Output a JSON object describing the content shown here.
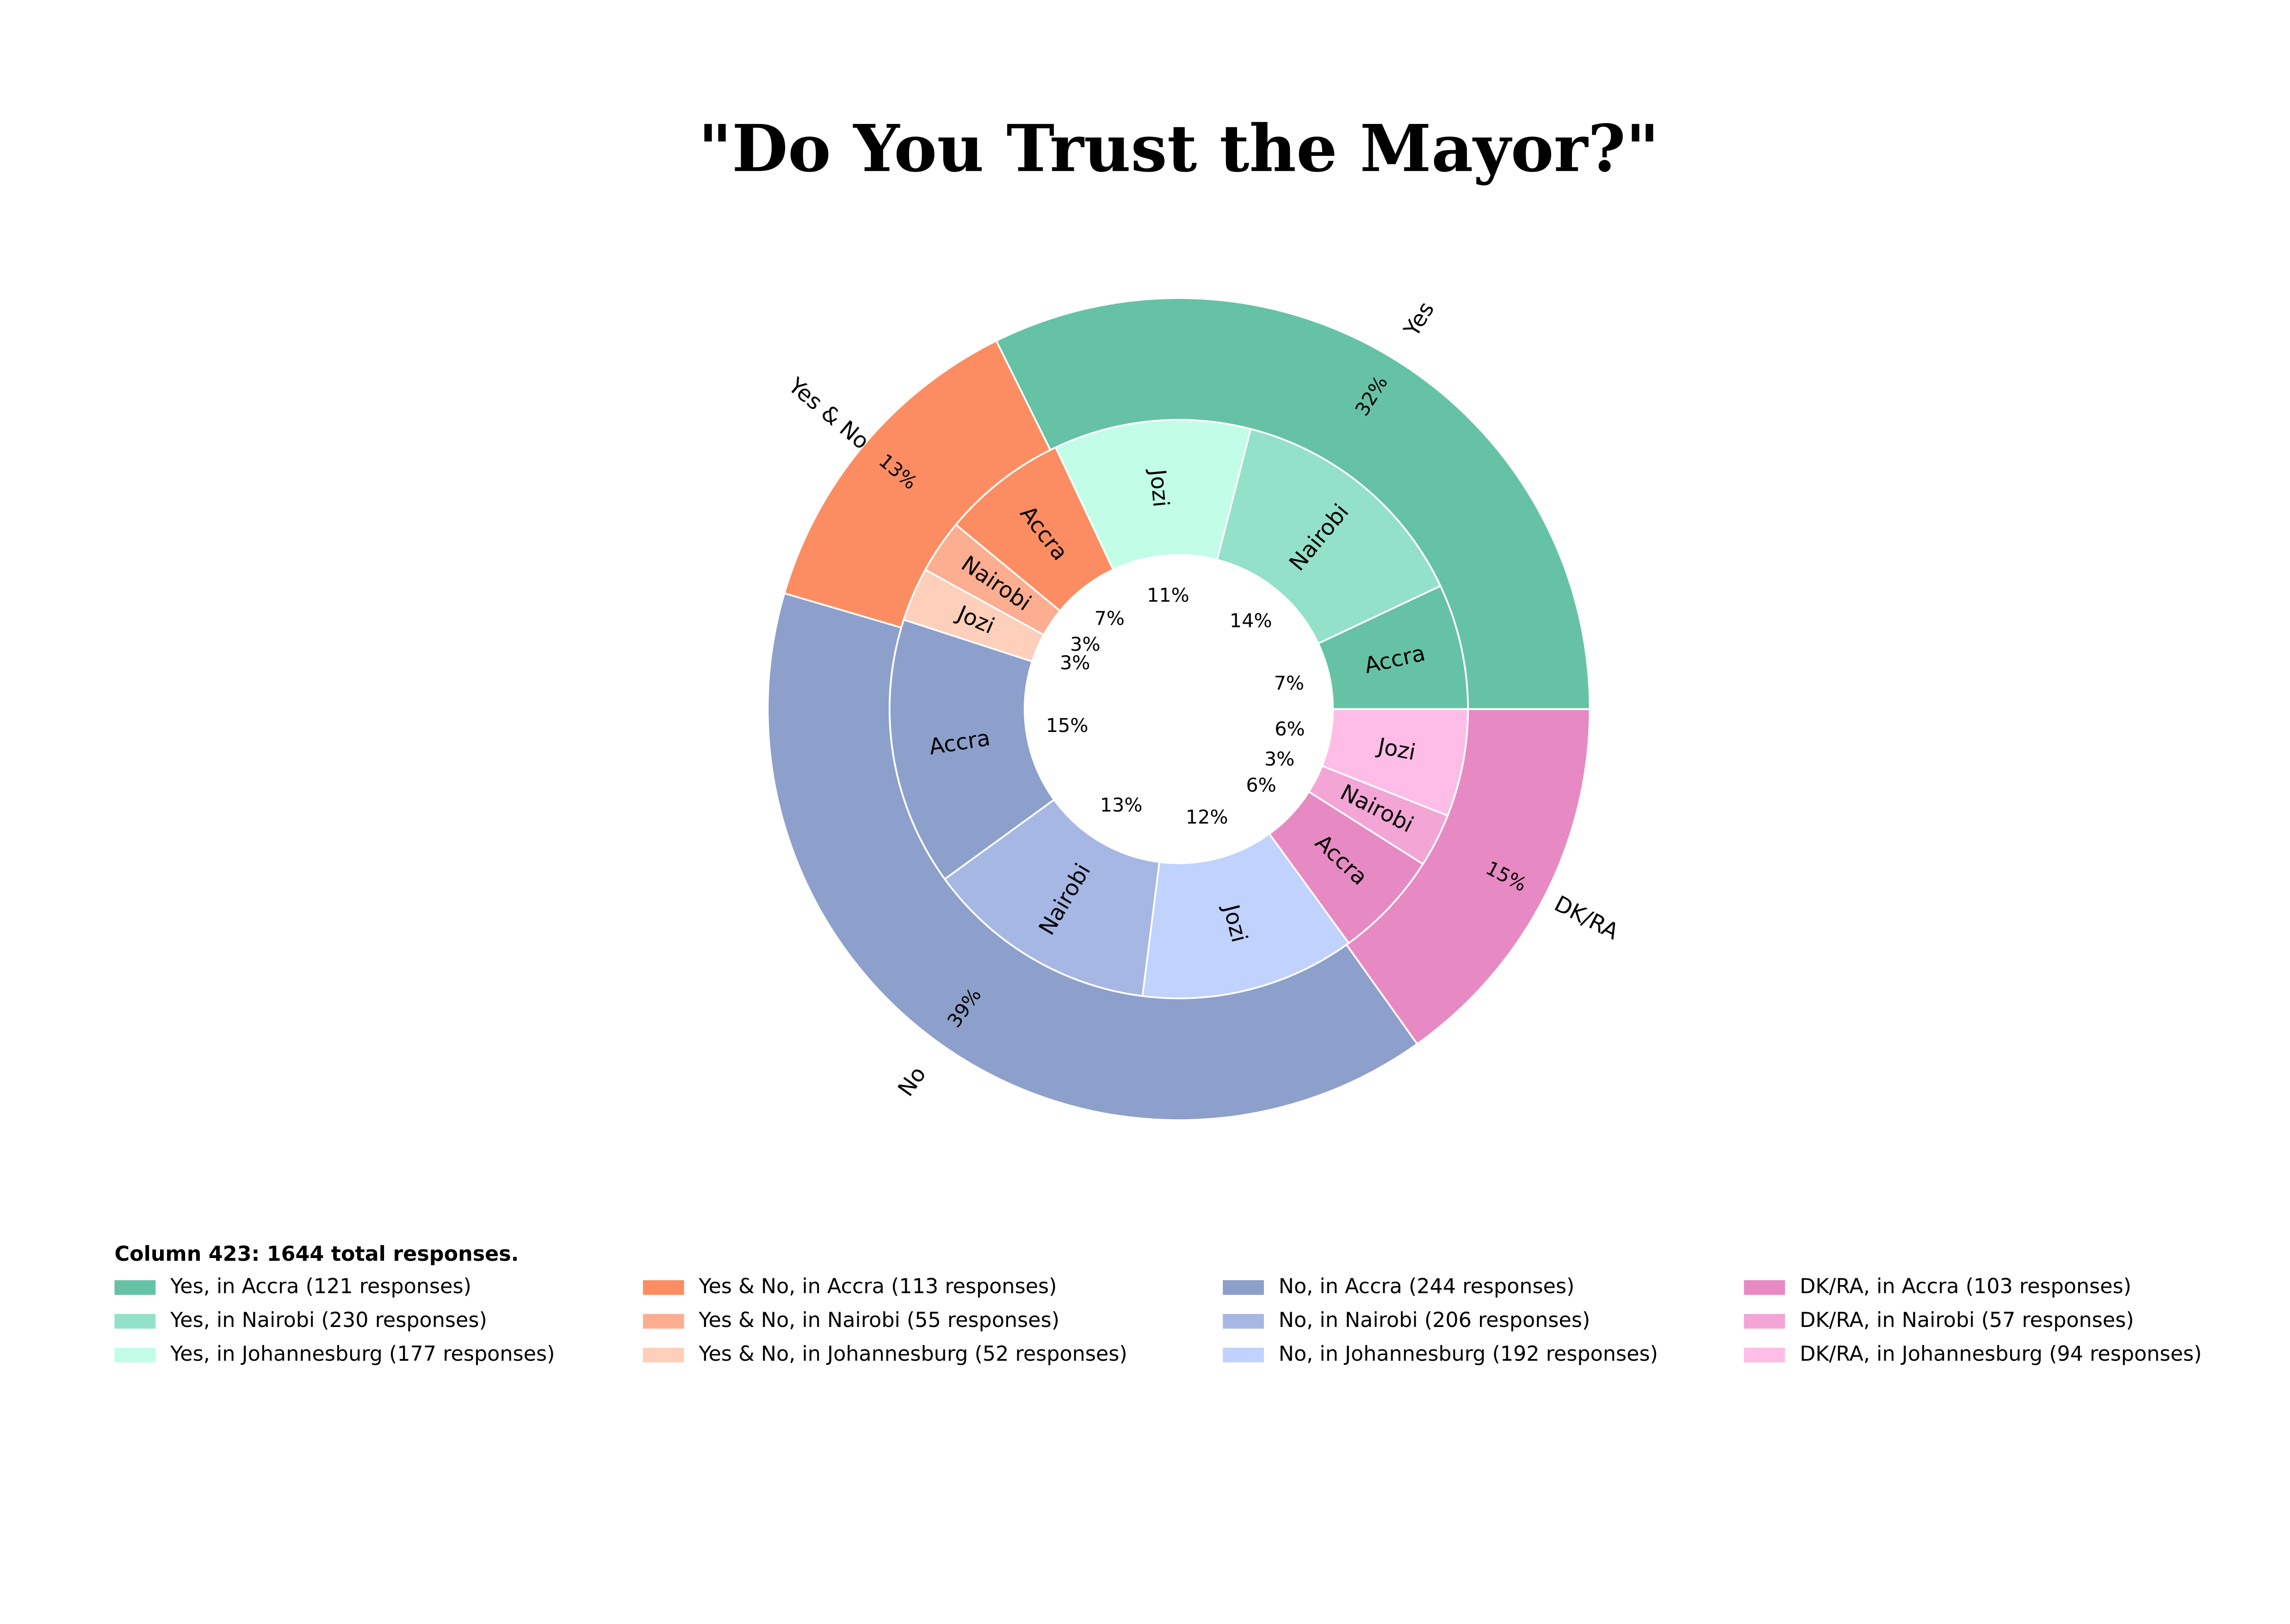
{
  "chart_data": {
    "type": "nested_pie",
    "title": "\"Do You Trust the Mayor?\"",
    "legend_title": "Column 423: 1644 total responses.",
    "categories": [
      "Yes",
      "Yes & No",
      "No",
      "DK/RA"
    ],
    "values": [
      32,
      13,
      39,
      15
    ],
    "value_labels": [
      "32%",
      "13%",
      "39%",
      "15%"
    ],
    "colors": [
      "#66c2a5",
      "#fc8d62",
      "#8da0cb",
      "#e78ac3"
    ],
    "inner": [
      {
        "categories": [
          "Accra",
          "Nairobi",
          "Jozi"
        ],
        "values": [
          7,
          14,
          11
        ],
        "value_labels": [
          "7%",
          "14%",
          "11%"
        ],
        "colors": [
          "#66c2a5",
          "#93e1c8",
          "#c2fde8"
        ],
        "legend": [
          "Yes, in Accra (121 responses)",
          "Yes, in Nairobi (230 responses)",
          "Yes, in Johannesburg (177 responses)"
        ]
      },
      {
        "categories": [
          "Accra",
          "Nairobi",
          "Jozi"
        ],
        "values": [
          7,
          3,
          3
        ],
        "value_labels": [
          "7%",
          "3%",
          "3%"
        ],
        "colors": [
          "#fc8d62",
          "#fdad90",
          "#fecfba"
        ],
        "legend": [
          "Yes & No, in Accra (113 responses)",
          "Yes & No, in Nairobi (55 responses)",
          "Yes & No, in Johannesburg (52 responses)"
        ]
      },
      {
        "categories": [
          "Accra",
          "Nairobi",
          "Jozi"
        ],
        "values": [
          15,
          13,
          12
        ],
        "value_labels": [
          "15%",
          "13%",
          "12%"
        ],
        "colors": [
          "#8da0cb",
          "#a6b7e4",
          "#c0d2fd"
        ],
        "legend": [
          "No, in Accra (244 responses)",
          "No, in Nairobi (206 responses)",
          "No, in Johannesburg (192 responses)"
        ]
      },
      {
        "categories": [
          "Accra",
          "Nairobi",
          "Jozi"
        ],
        "values": [
          6,
          3,
          6
        ],
        "value_labels": [
          "6%",
          "3%",
          "6%"
        ],
        "colors": [
          "#e78ac3",
          "#f3a5d6",
          "#fdbde7"
        ],
        "legend": [
          "DK/RA, in Accra (103 responses)",
          "DK/RA, in Nairobi (57 responses)",
          "DK/RA, in Johannesburg (94 responses)"
        ]
      }
    ]
  }
}
